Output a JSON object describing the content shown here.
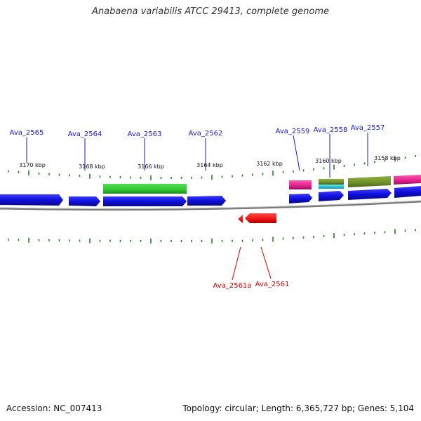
{
  "title": "Anabaena variabilis ATCC 29413, complete genome",
  "footer": {
    "accession": "Accession: NC_007413",
    "summary": "Topology: circular; Length: 6,365,727 bp; Genes: 5,104"
  },
  "scale_labels": [
    "3170 kbp",
    "3168 kbp",
    "3166 kbp",
    "3164 kbp",
    "3162 kbp",
    "3160 kbp",
    "3158 kbp"
  ],
  "gene_labels_forward": [
    "Ava_2565",
    "Ava_2564",
    "Ava_2563",
    "Ava_2562",
    "Ava_2559",
    "Ava_2558",
    "Ava_2557"
  ],
  "gene_labels_reverse": [
    "Ava_2561a",
    "Ava_2561"
  ],
  "colors": {
    "forward_label": "#1a1acc",
    "reverse_label": "#cc0000",
    "blue_gene": "#1010dd",
    "green_gene": "#33cc33",
    "magenta_gene": "#e0208a",
    "olive_gene": "#6f8f2a",
    "cyan_gene": "#10c8d8",
    "red_gene": "#ee1111",
    "tick": "#2a7a2a",
    "backbone": "#777777"
  }
}
